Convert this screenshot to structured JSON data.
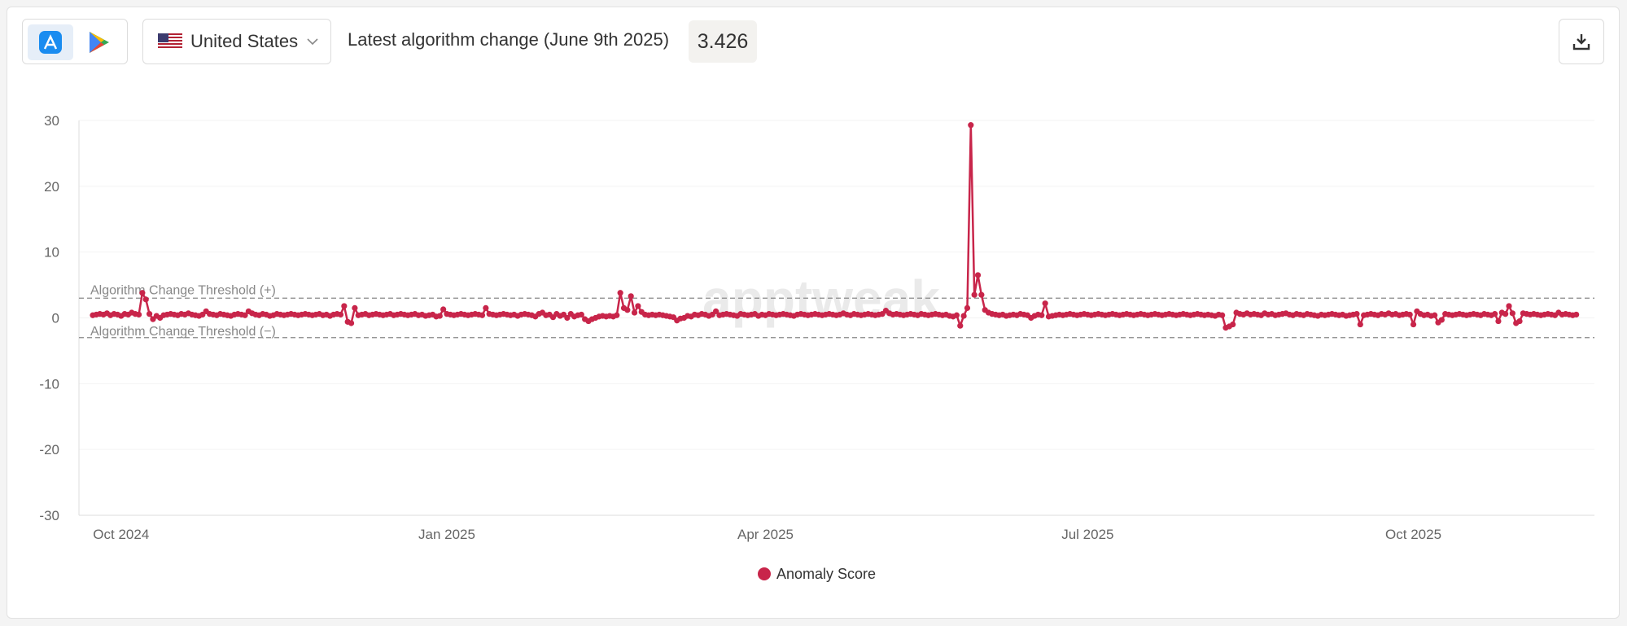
{
  "header": {
    "country": "United States",
    "latest_change_label": "Latest algorithm change (June 9th 2025)",
    "latest_change_value": "3.426"
  },
  "chart_data": {
    "type": "line",
    "watermark": "apptweak",
    "categories": [
      null,
      null,
      null,
      null,
      null,
      null,
      null,
      null,
      "Oct 2024",
      null,
      null,
      null,
      null,
      null,
      null,
      null,
      null,
      null,
      null,
      null,
      null,
      null,
      null,
      null,
      null,
      null,
      null,
      null,
      null,
      null,
      null,
      null,
      null,
      null,
      null,
      null,
      null,
      null,
      null,
      null,
      null,
      null,
      null,
      null,
      null,
      null,
      null,
      null,
      null,
      null,
      null,
      null,
      null,
      null,
      null,
      null,
      null,
      null,
      null,
      null,
      null,
      null,
      null,
      null,
      null,
      null,
      null,
      null,
      null,
      null,
      null,
      null,
      null,
      null,
      null,
      null,
      null,
      null,
      null,
      null,
      null,
      null,
      null,
      null,
      null,
      null,
      null,
      null,
      null,
      null,
      null,
      null,
      null,
      null,
      null,
      null,
      null,
      null,
      null,
      null,
      "Jan 2025",
      null,
      null,
      null,
      null,
      null,
      null,
      null,
      null,
      null,
      null,
      null,
      null,
      null,
      null,
      null,
      null,
      null,
      null,
      null,
      null,
      null,
      null,
      null,
      null,
      null,
      null,
      null,
      null,
      null,
      null,
      null,
      null,
      null,
      null,
      null,
      null,
      null,
      null,
      null,
      null,
      null,
      null,
      null,
      null,
      null,
      null,
      null,
      null,
      null,
      null,
      null,
      null,
      null,
      null,
      null,
      null,
      null,
      null,
      null,
      null,
      null,
      null,
      null,
      null,
      null,
      null,
      null,
      null,
      null,
      null,
      null,
      null,
      null,
      null,
      null,
      null,
      null,
      null,
      null,
      null,
      null,
      null,
      null,
      null,
      null,
      null,
      null,
      null,
      null,
      "Apr 2025",
      null,
      null,
      null,
      null,
      null,
      null,
      null,
      null,
      null,
      null,
      null,
      null,
      null,
      null,
      null,
      null,
      null,
      null,
      null,
      null,
      null,
      null,
      null,
      null,
      null,
      null,
      null,
      null,
      null,
      null,
      null,
      null,
      null,
      null,
      null,
      null,
      null,
      null,
      null,
      null,
      null,
      null,
      null,
      null,
      null,
      null,
      null,
      null,
      null,
      null,
      null,
      null,
      null,
      null,
      null,
      null,
      null,
      null,
      null,
      null,
      null,
      null,
      null,
      null,
      null,
      null,
      null,
      null,
      null,
      null,
      null,
      null,
      null,
      null,
      null,
      null,
      null,
      null,
      null,
      null,
      null,
      null,
      null,
      null,
      null,
      null,
      null,
      null,
      null,
      null,
      "Jul 2025",
      null,
      null,
      null,
      null,
      null,
      null,
      null,
      null,
      null,
      null,
      null,
      null,
      null,
      null,
      null,
      null,
      null,
      null,
      null,
      null,
      null,
      null,
      null,
      null,
      null,
      null,
      null,
      null,
      null,
      null,
      null,
      null,
      null,
      null,
      null,
      null,
      null,
      null,
      null,
      null,
      null,
      null,
      null,
      null,
      null,
      null,
      null,
      null,
      null,
      null,
      null,
      null,
      null,
      null,
      null,
      null,
      null,
      null,
      null,
      null,
      null,
      null,
      null,
      null,
      null,
      null,
      null,
      null,
      null,
      null,
      null,
      null,
      null,
      null,
      null,
      null,
      null,
      null,
      null,
      null,
      null,
      null,
      null,
      null,
      null,
      null,
      null,
      null,
      null,
      null,
      null,
      "Oct 2025",
      null,
      null,
      null,
      null,
      null,
      null,
      null,
      null,
      null,
      null,
      null,
      null,
      null,
      null,
      null,
      null,
      null,
      null,
      null,
      null,
      null,
      null,
      null,
      null,
      null,
      null,
      null,
      null,
      null,
      null,
      null,
      null,
      null,
      null,
      null,
      null,
      null,
      null,
      null,
      null,
      null,
      null,
      null,
      null,
      null,
      null
    ],
    "series": [
      {
        "name": "Anomaly Score",
        "color": "#c8254a",
        "values": [
          0.4,
          0.5,
          0.6,
          0.5,
          0.7,
          0.4,
          0.6,
          0.5,
          0.3,
          0.6,
          0.5,
          0.8,
          0.6,
          0.5,
          3.8,
          2.8,
          0.6,
          -0.2,
          0.3,
          0.0,
          0.4,
          0.5,
          0.6,
          0.5,
          0.4,
          0.6,
          0.5,
          0.7,
          0.5,
          0.4,
          0.3,
          0.5,
          1.0,
          0.6,
          0.5,
          0.4,
          0.6,
          0.5,
          0.4,
          0.3,
          0.5,
          0.6,
          0.5,
          0.4,
          1.0,
          0.7,
          0.5,
          0.4,
          0.6,
          0.5,
          0.3,
          0.4,
          0.6,
          0.5,
          0.4,
          0.5,
          0.6,
          0.5,
          0.4,
          0.5,
          0.6,
          0.5,
          0.4,
          0.5,
          0.6,
          0.4,
          0.5,
          0.3,
          0.5,
          0.6,
          0.5,
          1.8,
          -0.6,
          -0.8,
          1.5,
          0.4,
          0.5,
          0.6,
          0.4,
          0.5,
          0.6,
          0.5,
          0.4,
          0.5,
          0.6,
          0.4,
          0.5,
          0.6,
          0.5,
          0.4,
          0.5,
          0.6,
          0.4,
          0.5,
          0.3,
          0.4,
          0.5,
          0.2,
          0.3,
          1.3,
          0.6,
          0.5,
          0.4,
          0.5,
          0.6,
          0.5,
          0.4,
          0.5,
          0.6,
          0.5,
          0.4,
          1.5,
          0.6,
          0.5,
          0.4,
          0.5,
          0.6,
          0.5,
          0.4,
          0.5,
          0.3,
          0.5,
          0.6,
          0.5,
          0.4,
          0.2,
          0.6,
          0.8,
          0.4,
          0.5,
          0.1,
          0.6,
          0.3,
          0.5,
          0.0,
          0.6,
          0.2,
          0.4,
          0.5,
          -0.2,
          -0.5,
          -0.2,
          0.0,
          0.2,
          0.3,
          0.2,
          0.3,
          0.2,
          0.4,
          3.8,
          1.5,
          1.2,
          3.3,
          0.8,
          1.8,
          0.9,
          0.5,
          0.4,
          0.5,
          0.4,
          0.5,
          0.4,
          0.3,
          0.2,
          0.1,
          -0.4,
          -0.1,
          0.0,
          0.3,
          0.2,
          0.5,
          0.4,
          0.6,
          0.5,
          0.3,
          0.5,
          1.0,
          0.4,
          0.5,
          0.6,
          0.5,
          0.4,
          0.3,
          0.6,
          0.5,
          0.4,
          0.5,
          0.6,
          0.3,
          0.5,
          0.4,
          0.6,
          0.5,
          0.4,
          0.5,
          0.6,
          0.5,
          0.4,
          0.3,
          0.5,
          0.6,
          0.5,
          0.4,
          0.5,
          0.6,
          0.5,
          0.4,
          0.5,
          0.6,
          0.5,
          0.4,
          0.5,
          0.7,
          0.5,
          0.4,
          0.6,
          0.5,
          0.4,
          0.5,
          0.6,
          0.5,
          0.4,
          0.5,
          0.6,
          1.1,
          0.7,
          0.5,
          0.6,
          0.5,
          0.4,
          0.5,
          0.6,
          0.5,
          0.4,
          0.6,
          0.5,
          0.4,
          0.5,
          0.6,
          0.5,
          0.4,
          0.5,
          0.3,
          0.2,
          0.4,
          -1.2,
          0.3,
          1.5,
          29.3,
          3.5,
          6.5,
          3.5,
          1.2,
          0.8,
          0.6,
          0.5,
          0.4,
          0.5,
          0.3,
          0.4,
          0.5,
          0.4,
          0.6,
          0.5,
          0.4,
          0.0,
          0.3,
          0.5,
          0.4,
          2.2,
          0.2,
          0.3,
          0.4,
          0.5,
          0.4,
          0.5,
          0.6,
          0.5,
          0.4,
          0.5,
          0.6,
          0.5,
          0.4,
          0.5,
          0.6,
          0.5,
          0.4,
          0.5,
          0.6,
          0.5,
          0.4,
          0.5,
          0.6,
          0.5,
          0.4,
          0.5,
          0.6,
          0.5,
          0.4,
          0.5,
          0.6,
          0.5,
          0.4,
          0.5,
          0.6,
          0.5,
          0.4,
          0.5,
          0.6,
          0.5,
          0.4,
          0.5,
          0.6,
          0.5,
          0.4,
          0.5,
          0.4,
          0.3,
          0.5,
          0.4,
          -1.5,
          -1.3,
          -1.0,
          0.8,
          0.6,
          0.5,
          0.7,
          0.5,
          0.6,
          0.5,
          0.4,
          0.7,
          0.5,
          0.6,
          0.4,
          0.5,
          0.6,
          0.7,
          0.5,
          0.4,
          0.6,
          0.5,
          0.4,
          0.6,
          0.5,
          0.4,
          0.3,
          0.5,
          0.4,
          0.5,
          0.6,
          0.5,
          0.4,
          0.5,
          0.3,
          0.4,
          0.5,
          0.6,
          -1.0,
          0.4,
          0.5,
          0.6,
          0.5,
          0.4,
          0.6,
          0.5,
          0.7,
          0.5,
          0.6,
          0.4,
          0.5,
          0.6,
          0.5,
          -1.0,
          1.0,
          0.6,
          0.4,
          0.5,
          0.3,
          0.4,
          -0.7,
          -0.3,
          0.6,
          0.5,
          0.4,
          0.5,
          0.6,
          0.5,
          0.4,
          0.5,
          0.6,
          0.5,
          0.4,
          0.6,
          0.5,
          0.4,
          0.6,
          -0.5,
          0.8,
          0.6,
          1.8,
          0.7,
          -0.8,
          -0.5,
          0.7,
          0.6,
          0.5,
          0.6,
          0.5,
          0.4,
          0.5,
          0.6,
          0.5,
          0.4,
          0.8,
          0.5,
          0.6,
          0.5,
          0.4,
          0.5
        ]
      }
    ],
    "thresholds": [
      {
        "label": "Algorithm Change Threshold (+)",
        "value": 3
      },
      {
        "label": "Algorithm Change Threshold (−)",
        "value": -3
      }
    ],
    "ylim": [
      -30,
      30
    ],
    "yticks": [
      -30,
      -20,
      -10,
      0,
      10,
      20,
      30
    ],
    "grid": true,
    "legend": "bottom"
  }
}
